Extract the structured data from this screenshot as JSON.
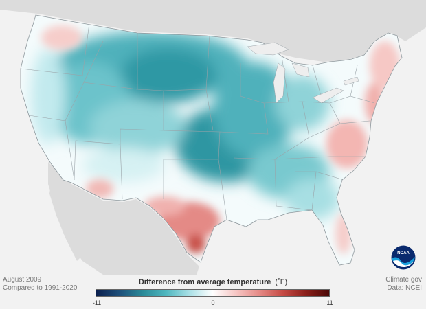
{
  "meta": {
    "date": "August 2009",
    "baseline": "Compared to 1991-2020",
    "source": "Climate.gov",
    "data_credit": "Data: NCEI"
  },
  "legend": {
    "title": "Difference from average temperature",
    "unit": "(˚F)",
    "min_label": "-11",
    "mid_label": "0",
    "max_label": "11",
    "min": -11,
    "max": 11,
    "colors": [
      "#0b1f4e",
      "#1d4f7a",
      "#2a8a98",
      "#4fb7bf",
      "#a9e0e6",
      "#ffffff",
      "#f6c6c4",
      "#e58a86",
      "#c64b45",
      "#8a1f1a",
      "#4a0806"
    ]
  },
  "logo": {
    "label": "NOAA"
  },
  "map": {
    "land_color": "#d8d8d8",
    "neutral_color": "#f6fbfc",
    "border_color": "#9aa3a8",
    "regions": [
      {
        "name": "northern-rockies-plains",
        "anomaly": -4
      },
      {
        "name": "central-plains",
        "anomaly": -4.5
      },
      {
        "name": "upper-midwest",
        "anomaly": -3
      },
      {
        "name": "great-basin",
        "anomaly": -2.5
      },
      {
        "name": "west-coast",
        "anomaly": -0.5
      },
      {
        "name": "southeast",
        "anomaly": -1.5
      },
      {
        "name": "texas",
        "anomaly": 2
      },
      {
        "name": "new-england",
        "anomaly": 1.5
      },
      {
        "name": "mid-atlantic",
        "anomaly": 1.5
      }
    ]
  }
}
